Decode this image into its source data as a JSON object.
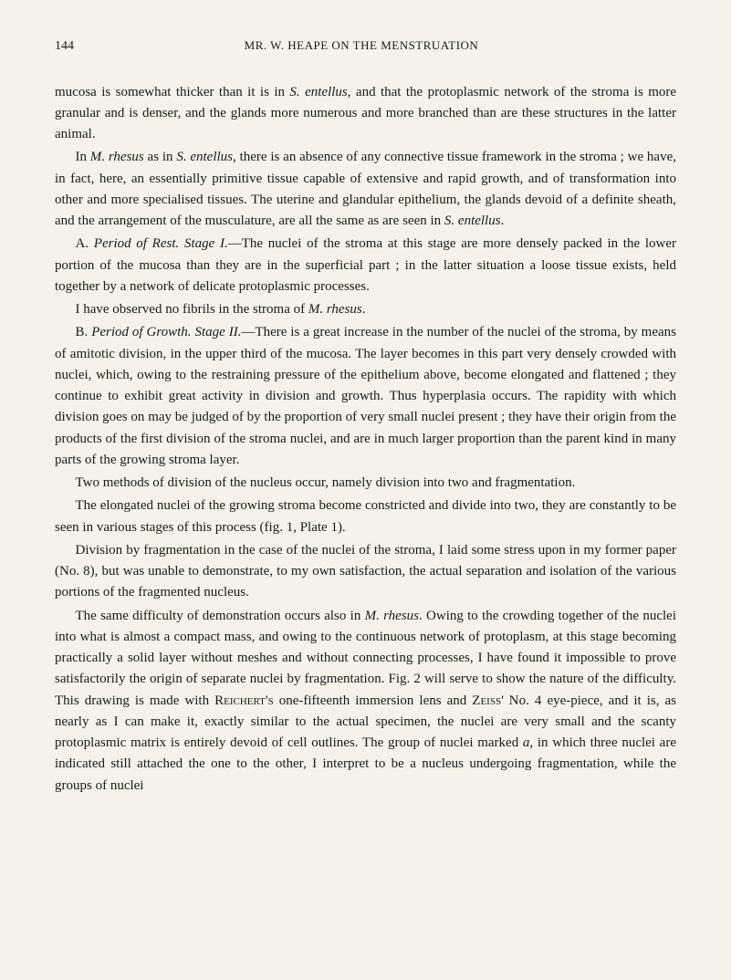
{
  "header": {
    "page_number": "144",
    "running_title": "MR. W. HEAPE ON THE MENSTRUATION"
  },
  "paragraphs": [
    {
      "indent": false,
      "html": "mucosa is somewhat thicker than it is in <span class='italic'>S. entellus</span>, and that the protoplasmic network of the stroma is more granular and is denser, and the glands more numerous and more branched than are these structures in the latter animal."
    },
    {
      "indent": true,
      "html": "In <span class='italic'>M. rhesus</span> as in <span class='italic'>S. entellus</span>, there is an absence of any connective tissue framework in the stroma ; we have, in fact, here, an essentially primitive tissue capable of extensive and rapid growth, and of transformation into other and more specialised tissues. The uterine and glandular epithelium, the glands devoid of a definite sheath, and the arrangement of the musculature, are all the same as are seen in <span class='italic'>S. entellus</span>."
    },
    {
      "indent": true,
      "html": "A. <span class='italic'>Period of Rest. Stage I.</span>—The nuclei of the stroma at this stage are more densely packed in the lower portion of the mucosa than they are in the superficial part ; in the latter situation a loose tissue exists, held together by a network of delicate protoplasmic processes."
    },
    {
      "indent": true,
      "html": "I have observed no fibrils in the stroma of <span class='italic'>M. rhesus</span>."
    },
    {
      "indent": true,
      "html": "B. <span class='italic'>Period of Growth. Stage II.</span>—There is a great increase in the number of the nuclei of the stroma, by means of amitotic division, in the upper third of the mucosa. The layer becomes in this part very densely crowded with nuclei, which, owing to the restraining pressure of the epithelium above, become elongated and flattened ; they continue to exhibit great activity in division and growth. Thus hyperplasia occurs. The rapidity with which division goes on may be judged of by the proportion of very small nuclei present ; they have their origin from the products of the first division of the stroma nuclei, and are in much larger proportion than the parent kind in many parts of the growing stroma layer."
    },
    {
      "indent": true,
      "html": "Two methods of division of the nucleus occur, namely division into two and fragmentation."
    },
    {
      "indent": true,
      "html": "The elongated nuclei of the growing stroma become constricted and divide into two, they are constantly to be seen in various stages of this process (fig. 1, Plate 1)."
    },
    {
      "indent": true,
      "html": "Division by fragmentation in the case of the nuclei of the stroma, I laid some stress upon in my former paper (No. 8), but was unable to demonstrate, to my own satisfaction, the actual separation and isolation of the various portions of the fragmented nucleus."
    },
    {
      "indent": true,
      "html": "The same difficulty of demonstration occurs also in <span class='italic'>M. rhesus</span>. Owing to the crowding together of the nuclei into what is almost a compact mass, and owing to the continuous network of protoplasm, at this stage becoming practically a solid layer without meshes and without connecting processes, I have found it impossible to prove satisfactorily the origin of separate nuclei by fragmentation. Fig. 2 will serve to show the nature of the difficulty. This drawing is made with <span class='smallcaps'>Reichert's</span> one-fifteenth immersion lens and <span class='smallcaps'>Zeiss'</span> No. 4 eye-piece, and it is, as nearly as I can make it, exactly similar to the actual specimen, the nuclei are very small and the scanty protoplasmic matrix is entirely devoid of cell outlines. The group of nuclei marked <span class='italic'>a</span>, in which three nuclei are indicated still attached the one to the other, I interpret to be a nucleus undergoing fragmentation, while the groups of nuclei"
    }
  ]
}
